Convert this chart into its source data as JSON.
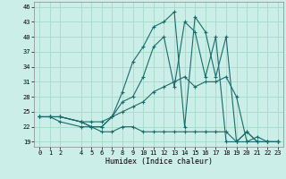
{
  "xlabel": "Humidex (Indice chaleur)",
  "bg_color": "#cceee8",
  "grid_color": "#aaddcc",
  "line_color": "#1a6b6b",
  "x_ticks": [
    0,
    1,
    2,
    4,
    5,
    6,
    7,
    8,
    9,
    10,
    11,
    12,
    13,
    14,
    15,
    16,
    17,
    18,
    19,
    20,
    21,
    22,
    23
  ],
  "xlim": [
    -0.5,
    23.5
  ],
  "ylim": [
    18,
    47
  ],
  "yticks": [
    19,
    22,
    25,
    28,
    31,
    34,
    37,
    40,
    43,
    46
  ],
  "series": [
    {
      "x": [
        0,
        1,
        2,
        4,
        5,
        6,
        7,
        8,
        9,
        10,
        11,
        12,
        13,
        14,
        15,
        16,
        17,
        18,
        19,
        20,
        21,
        22,
        23
      ],
      "y": [
        24,
        24,
        24,
        23,
        22,
        22,
        24,
        29,
        35,
        38,
        42,
        43,
        45,
        22,
        44,
        41,
        32,
        40,
        19,
        21,
        19,
        19,
        19
      ]
    },
    {
      "x": [
        0,
        1,
        2,
        4,
        5,
        6,
        7,
        8,
        9,
        10,
        11,
        12,
        13,
        14,
        15,
        16,
        17,
        18,
        19,
        20,
        21,
        22,
        23
      ],
      "y": [
        24,
        24,
        24,
        23,
        22,
        22,
        24,
        27,
        28,
        32,
        38,
        40,
        30,
        43,
        41,
        32,
        40,
        19,
        19,
        21,
        19,
        19,
        19
      ]
    },
    {
      "x": [
        0,
        1,
        2,
        4,
        5,
        6,
        7,
        8,
        9,
        10,
        11,
        12,
        13,
        14,
        15,
        16,
        17,
        18,
        19,
        20,
        21,
        22,
        23
      ],
      "y": [
        24,
        24,
        24,
        23,
        23,
        23,
        24,
        25,
        26,
        27,
        29,
        30,
        31,
        32,
        30,
        31,
        31,
        32,
        28,
        19,
        20,
        19,
        19
      ]
    },
    {
      "x": [
        0,
        1,
        2,
        4,
        5,
        6,
        7,
        8,
        9,
        10,
        11,
        12,
        13,
        14,
        15,
        16,
        17,
        18,
        19,
        20,
        21,
        22,
        23
      ],
      "y": [
        24,
        24,
        23,
        22,
        22,
        21,
        21,
        22,
        22,
        21,
        21,
        21,
        21,
        21,
        21,
        21,
        21,
        21,
        19,
        19,
        19,
        19,
        19
      ]
    }
  ]
}
